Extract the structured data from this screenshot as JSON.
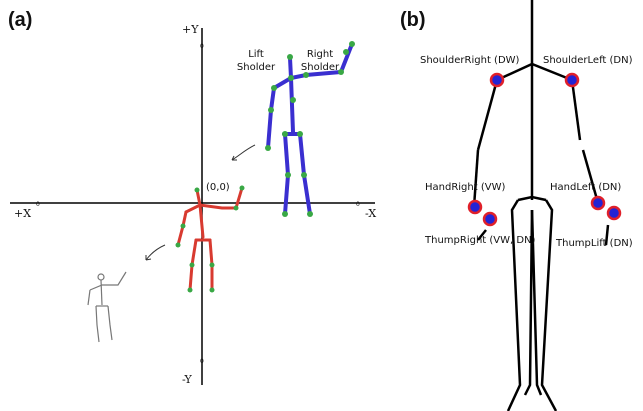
{
  "panel_a": {
    "label": "(a)",
    "axes": {
      "plus_y": "+Y",
      "minus_y": "-Y",
      "plus_x": "+X",
      "minus_x": "-X",
      "zero_top": "0",
      "zero_bottom": "0",
      "zero_left": "0",
      "zero_right": "0"
    },
    "origin": "(0,0)",
    "left_shoulder": [
      "Lift",
      "Sholder"
    ],
    "right_shoulder": [
      "Right",
      "Sholder"
    ]
  },
  "panel_b": {
    "label": "(b)",
    "joints": {
      "shoulder_right": "ShoulderRight (DW)",
      "shoulder_left": "ShoulderLeft (DN)",
      "hand_right": "HandRight (VW)",
      "hand_left": "HandLeft (DN)",
      "thumb_right": "ThumpRight (VW, DN)",
      "thumb_left": "ThumpLift (DN)"
    }
  }
}
